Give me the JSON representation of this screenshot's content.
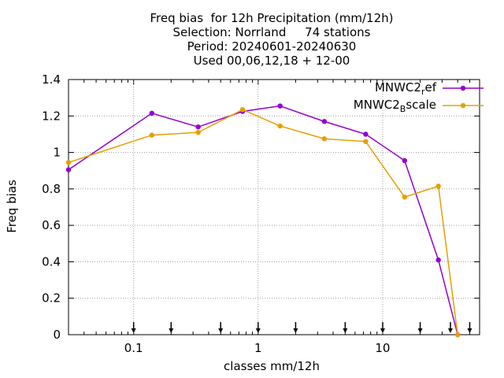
{
  "chart_data": {
    "type": "line",
    "title_lines": [
      "Freq bias  for 12h Precipitation (mm/12h)",
      "Selection: Norrland     74 stations",
      "Period: 20240601-20240630",
      "Used 00,06,12,18 + 12-00"
    ],
    "xlabel": "classes mm/12h",
    "ylabel": "Freq bias",
    "x_scale": "log",
    "xlim": [
      0.03,
      60
    ],
    "ylim": [
      0,
      1.4
    ],
    "y_ticks": [
      "0",
      "0.2",
      "0.4",
      "0.6",
      "0.8",
      "1",
      "1.2",
      "1.4"
    ],
    "x_ticks": [
      "0.1",
      "1",
      "10"
    ],
    "grid": true,
    "legend_position": "top-right",
    "arrow_markers_x": [
      0.1,
      0.2,
      0.5,
      1,
      2,
      5,
      10,
      20,
      35,
      50
    ],
    "series": [
      {
        "name": "MNWC2",
        "name_sub": "r",
        "name_rest": "ef",
        "color": "#9400d3",
        "points": [
          [
            0.03,
            0.905
          ],
          [
            0.14,
            1.215
          ],
          [
            0.33,
            1.14
          ],
          [
            0.75,
            1.225
          ],
          [
            1.5,
            1.255
          ],
          [
            3.4,
            1.17
          ],
          [
            7.3,
            1.1
          ],
          [
            15,
            0.955
          ],
          [
            28,
            0.41
          ],
          [
            40,
            0.0
          ]
        ]
      },
      {
        "name": "MNWC2",
        "name_sub": "B",
        "name_rest": "scale",
        "color": "#e69f00",
        "points": [
          [
            0.03,
            0.945
          ],
          [
            0.14,
            1.095
          ],
          [
            0.33,
            1.11
          ],
          [
            0.75,
            1.235
          ],
          [
            1.5,
            1.145
          ],
          [
            3.4,
            1.075
          ],
          [
            7.3,
            1.06
          ],
          [
            15,
            0.755
          ],
          [
            28,
            0.815
          ],
          [
            40,
            0.0
          ]
        ]
      }
    ]
  }
}
